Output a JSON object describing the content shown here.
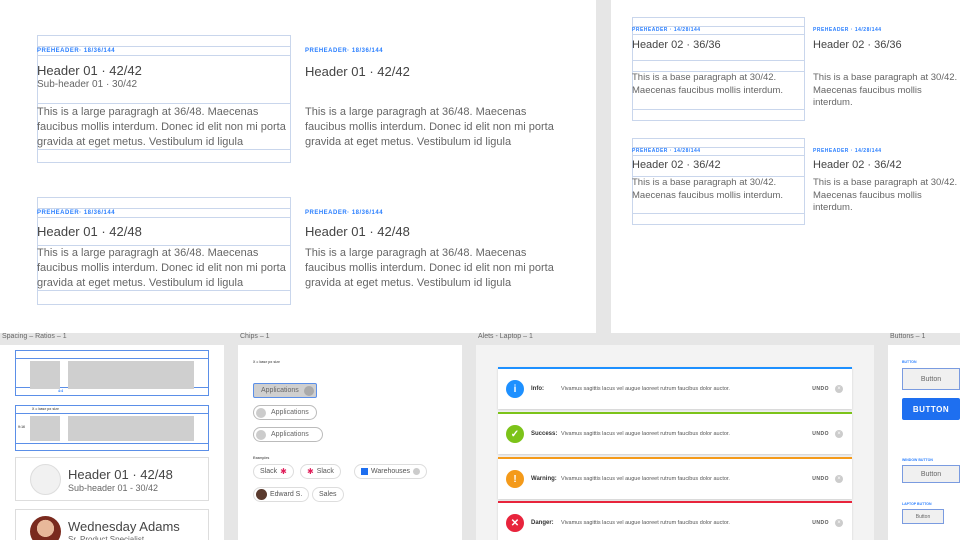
{
  "typography_large": {
    "blocks": [
      {
        "preheader": "PREHEADER· 18/36/144",
        "header": "Header 01 · 42/42",
        "subheader": "Sub-header 01 · 30/42",
        "paragraph": "This is a large paragragh at 36/48. Maecenas faucibus mollis interdum. Donec id elit non mi porta gravida at eget metus. Vestibulum id ligula"
      },
      {
        "preheader": "PREHEADER· 18/36/144",
        "header": "Header 01 · 42/42",
        "subheader": "",
        "paragraph": "This is a large paragragh at 36/48. Maecenas faucibus mollis interdum. Donec id elit non mi porta gravida at eget metus. Vestibulum id ligula"
      },
      {
        "preheader": "PREHEADER· 18/36/144",
        "header": "Header 01 · 42/48",
        "subheader": "",
        "paragraph": "This is a large paragragh at 36/48. Maecenas faucibus mollis interdum. Donec id elit non mi porta gravida at eget metus. Vestibulum id ligula"
      },
      {
        "preheader": "PREHEADER· 18/36/144",
        "header": "Header 01 · 42/48",
        "subheader": "",
        "paragraph": "This is a large paragragh at 36/48. Maecenas faucibus mollis interdum. Donec id elit non mi porta gravida at eget metus. Vestibulum id ligula"
      }
    ]
  },
  "typography_small": {
    "blocks": [
      {
        "preheader": "PREHEADER · 14/28/144",
        "header": "Header 02 · 36/36",
        "paragraph": "This is a base paragraph at 30/42. Maecenas faucibus mollis interdum."
      },
      {
        "preheader": "PREHEADER · 14/28/144",
        "header": "Header 02 · 36/36",
        "paragraph": "This is a base paragraph at 30/42. Maecenas faucibus mollis interdum."
      },
      {
        "preheader": "PREHEADER · 14/28/144",
        "header": "Header 02 · 36/42",
        "paragraph": "This is a base paragraph at 30/42. Maecenas faucibus mollis interdum."
      },
      {
        "preheader": "PREHEADER · 14/28/144",
        "header": "Header 02 · 36/42",
        "paragraph": "This is a base paragraph at 30/42. Maecenas faucibus mollis interdum."
      }
    ]
  },
  "spacing": {
    "label": "Spacing – Ratios – 1",
    "card1": {
      "header": "Header 01 · 42/48",
      "subheader": "Sub-header 01 - 30/42"
    },
    "card2": {
      "name": "Wednesday Adams",
      "role": "Sr. Product Specialist"
    },
    "tiny1": "4:4",
    "tiny2": "X = base px size",
    "tiny3": "9:16"
  },
  "chips": {
    "label": "Chips – 1",
    "note": "X = base px size",
    "chip_label": "Applications",
    "examples_label": "Examples",
    "examples": [
      "Slack",
      "Slack",
      "Warehouses",
      "Edward S.",
      "Sales"
    ]
  },
  "alerts": {
    "label": "Alets - Laptop – 1",
    "items": [
      {
        "icon": "info-icon",
        "glyph": "i",
        "title": "Info:",
        "text": "Vivamus sagittis lacus vel augue laoreet rutrum faucibus dolor auctor.",
        "undo": "UNDO",
        "color": "#1e90ff"
      },
      {
        "icon": "check-icon",
        "glyph": "✓",
        "title": "Success:",
        "text": "Vivamus sagittis lacus vel augue laoreet rutrum faucibus dolor auctor.",
        "undo": "UNDO",
        "color": "#7cc319"
      },
      {
        "icon": "warning-icon",
        "glyph": "!",
        "title": "Warning:",
        "text": "Vivamus sagittis lacus vel augue laoreet rutrum faucibus dolor auctor.",
        "undo": "UNDO",
        "color": "#f49a1a"
      },
      {
        "icon": "error-icon",
        "glyph": "✕",
        "title": "Danger:",
        "text": "Vivamus sagittis lacus vel augue laoreet rutrum faucibus dolor auctor.",
        "undo": "UNDO",
        "color": "#e8243c"
      }
    ]
  },
  "buttons": {
    "label": "Buttons – 1",
    "primary": "BUTTON",
    "ghost": "Button",
    "small_label_1": "BUTTON",
    "small_label_2": "WINDOW BUTTON",
    "small_label_3": "LAPTOP BUTTON",
    "ghost_small": "Button"
  }
}
